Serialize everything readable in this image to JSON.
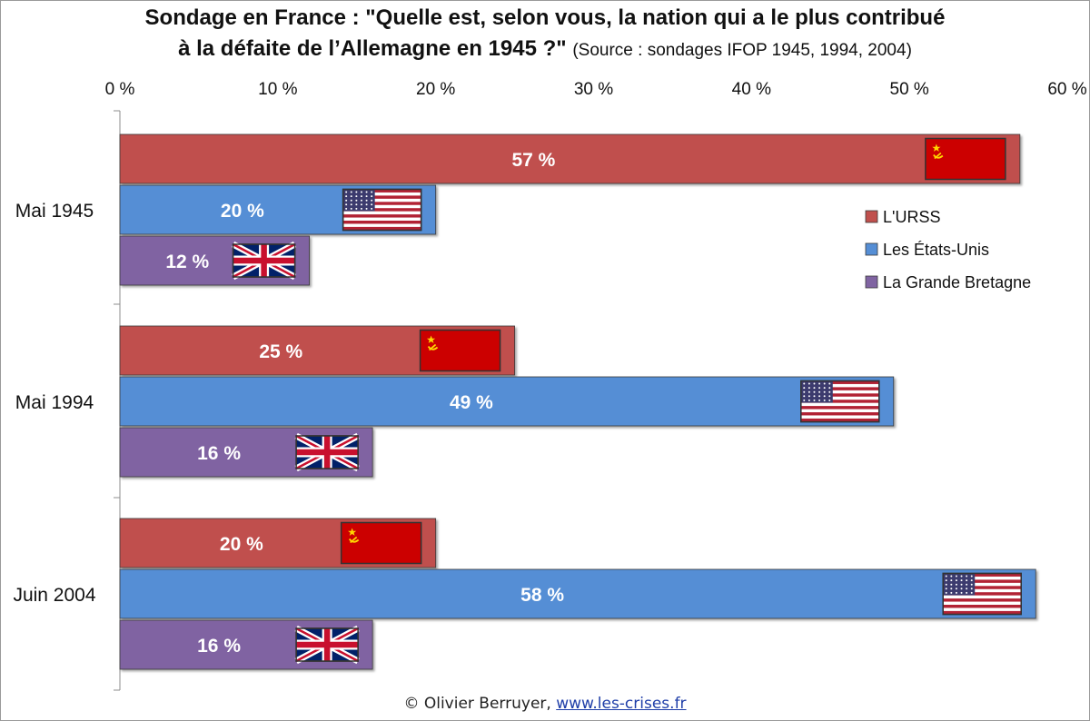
{
  "title_line1": "Sondage en France : \"Quelle est, selon vous, la nation qui a le plus contribué",
  "title_line2": "à la défaite de l’Allemagne en 1945 ?\"",
  "source": "(Source : sondages IFOP 1945, 1994, 2004)",
  "footer": {
    "copyright": "© Olivier Berruyer,",
    "link": "www.les-crises.fr"
  },
  "chart_data": {
    "type": "bar",
    "orientation": "horizontal",
    "categories": [
      "Mai 1945",
      "Mai 1994",
      "Juin 2004"
    ],
    "series": [
      {
        "name": "L'URSS",
        "values": [
          57,
          25,
          20
        ],
        "color": "#c0504d",
        "flag": "ussr-flag"
      },
      {
        "name": "Les États-Unis",
        "values": [
          20,
          49,
          58
        ],
        "color": "#558ed5",
        "flag": "usa-flag"
      },
      {
        "name": "La Grande Bretagne",
        "values": [
          12,
          16,
          16
        ],
        "color": "#8064a2",
        "flag": "uk-flag"
      }
    ],
    "value_labels": [
      [
        "57 %",
        "20 %",
        "12 %"
      ],
      [
        "25 %",
        "49 %",
        "16 %"
      ],
      [
        "20 %",
        "58 %",
        "16 %"
      ]
    ],
    "xlim": [
      0,
      60
    ],
    "xticks": [
      0,
      10,
      20,
      30,
      40,
      50,
      60
    ],
    "xtick_labels": [
      "0 %",
      "10 %",
      "20 %",
      "30 %",
      "40 %",
      "50 %",
      "60 %"
    ],
    "legend_position": "right",
    "xaxis_position": "top"
  }
}
